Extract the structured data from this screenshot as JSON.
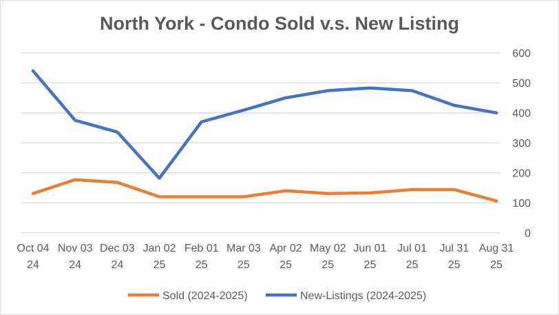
{
  "chart_data": {
    "type": "line",
    "title": "North York  - Condo Sold v.s. New Listing",
    "categories": [
      [
        "Oct 04",
        "24"
      ],
      [
        "Nov 03",
        "24"
      ],
      [
        "Dec 03",
        "24"
      ],
      [
        "Jan 02",
        "25"
      ],
      [
        "Feb 01",
        "25"
      ],
      [
        "Mar 03",
        "25"
      ],
      [
        "Apr 02",
        "25"
      ],
      [
        "May 02",
        "25"
      ],
      [
        "Jun 01",
        "25"
      ],
      [
        "Jul 01",
        "25"
      ],
      [
        "Jul 31",
        "25"
      ],
      [
        "Aug 31",
        "25"
      ]
    ],
    "yaxis_position": "right",
    "ylim": [
      0,
      600
    ],
    "yticks": [
      0,
      100,
      200,
      300,
      400,
      500,
      600
    ],
    "grid": true,
    "legend": "bottom",
    "series": [
      {
        "name": "Sold (2024-2025)",
        "color": "#ED7D31",
        "values": [
          131,
          177,
          168,
          120,
          120,
          120,
          140,
          131,
          133,
          144,
          144,
          106
        ]
      },
      {
        "name": "New-Listings (2024-2025)",
        "color": "#4472C4",
        "values": [
          540,
          375,
          336,
          182,
          370,
          409,
          450,
          474,
          483,
          474,
          425,
          400
        ]
      }
    ]
  }
}
